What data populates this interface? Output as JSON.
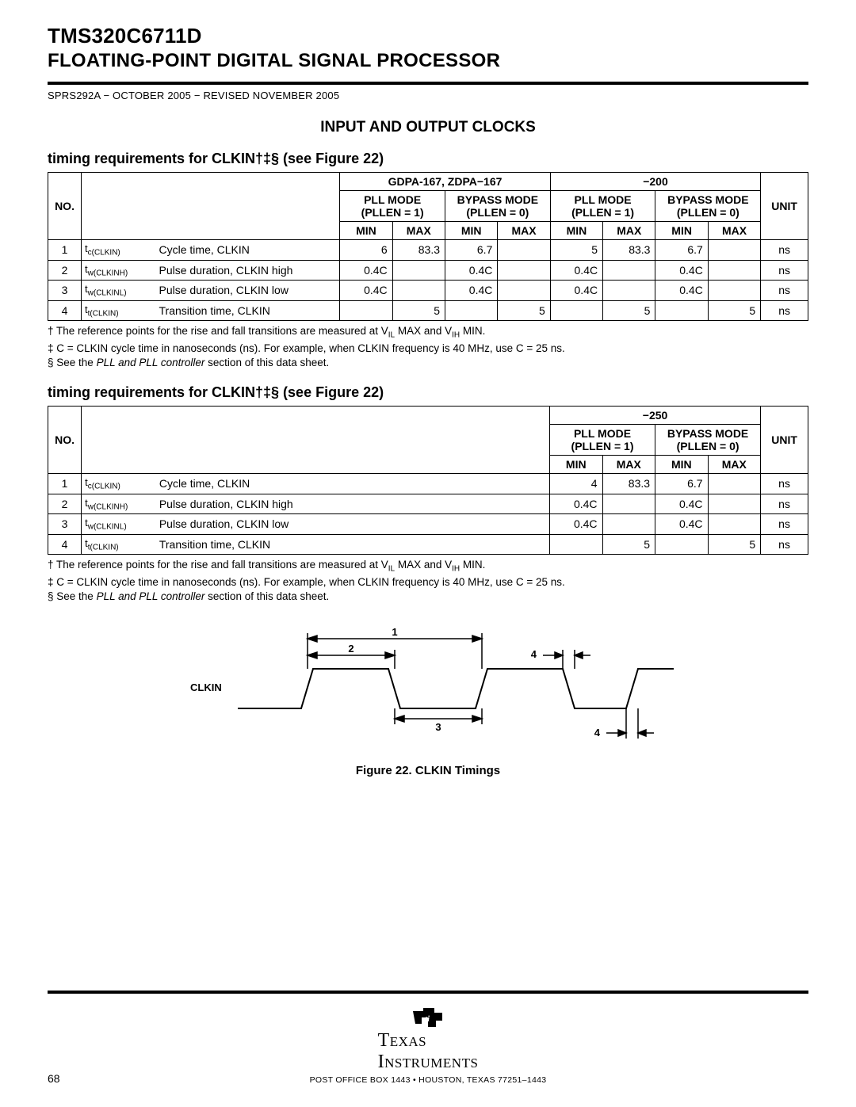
{
  "header": {
    "title": "TMS320C6711D",
    "subtitle": "FLOATING-POINT DIGITAL SIGNAL PROCESSOR",
    "revision": "SPRS292A − OCTOBER 2005 − REVISED NOVEMBER 2005"
  },
  "section_heading": "INPUT AND OUTPUT CLOCKS",
  "subheading": "timing requirements for CLKIN†‡§ (see Figure 22)",
  "table1": {
    "top_groups": [
      "GDPA-167, ZDPA−167",
      "−200"
    ],
    "mode_headers": [
      "PLL MODE (PLLEN = 1)",
      "BYPASS MODE (PLLEN = 0)",
      "PLL MODE (PLLEN = 1)",
      "BYPASS MODE (PLLEN = 0)"
    ],
    "minmax": [
      "MIN",
      "MAX",
      "MIN",
      "MAX",
      "MIN",
      "MAX",
      "MIN",
      "MAX"
    ],
    "no_label": "NO.",
    "unit_label": "UNIT",
    "rows": [
      {
        "no": "1",
        "sym_html": "t<sub>c(CLKIN)</sub>",
        "desc": "Cycle time, CLKIN",
        "vals": [
          "6",
          "83.3",
          "6.7",
          "",
          "5",
          "83.3",
          "6.7",
          ""
        ],
        "unit": "ns"
      },
      {
        "no": "2",
        "sym_html": "t<sub>w(CLKINH)</sub>",
        "desc": "Pulse duration, CLKIN high",
        "vals": [
          "0.4C",
          "",
          "0.4C",
          "",
          "0.4C",
          "",
          "0.4C",
          ""
        ],
        "unit": "ns"
      },
      {
        "no": "3",
        "sym_html": "t<sub>w(CLKINL)</sub>",
        "desc": "Pulse duration, CLKIN low",
        "vals": [
          "0.4C",
          "",
          "0.4C",
          "",
          "0.4C",
          "",
          "0.4C",
          ""
        ],
        "unit": "ns"
      },
      {
        "no": "4",
        "sym_html": "t<sub>t(CLKIN)</sub>",
        "desc": "Transition time, CLKIN",
        "vals": [
          "",
          "5",
          "",
          "5",
          "",
          "5",
          "",
          "5"
        ],
        "unit": "ns"
      }
    ]
  },
  "table2": {
    "top_group": "−250",
    "mode_headers": [
      "PLL MODE (PLLEN = 1)",
      "BYPASS MODE (PLLEN = 0)"
    ],
    "minmax": [
      "MIN",
      "MAX",
      "MIN",
      "MAX"
    ],
    "no_label": "NO.",
    "unit_label": "UNIT",
    "rows": [
      {
        "no": "1",
        "sym_html": "t<sub>c(CLKIN)</sub>",
        "desc": "Cycle time, CLKIN",
        "vals": [
          "4",
          "83.3",
          "6.7",
          ""
        ],
        "unit": "ns"
      },
      {
        "no": "2",
        "sym_html": "t<sub>w(CLKINH)</sub>",
        "desc": "Pulse duration, CLKIN high",
        "vals": [
          "0.4C",
          "",
          "0.4C",
          ""
        ],
        "unit": "ns"
      },
      {
        "no": "3",
        "sym_html": "t<sub>w(CLKINL)</sub>",
        "desc": "Pulse duration, CLKIN low",
        "vals": [
          "0.4C",
          "",
          "0.4C",
          ""
        ],
        "unit": "ns"
      },
      {
        "no": "4",
        "sym_html": "t<sub>t(CLKIN)</sub>",
        "desc": "Transition time, CLKIN",
        "vals": [
          "",
          "5",
          "",
          "5"
        ],
        "unit": "ns"
      }
    ]
  },
  "footnotes": {
    "f1_pre": "† The reference points for the rise and fall transitions are measured at V",
    "f1_sub1": "IL",
    "f1_mid": " MAX and V",
    "f1_sub2": "IH",
    "f1_post": " MIN.",
    "f2": "‡ C = CLKIN cycle time in nanoseconds (ns). For example, when CLKIN frequency is 40 MHz, use C = 25 ns.",
    "f3_pre": "§ See the ",
    "f3_italic": "PLL and PLL controller",
    "f3_post": " section of this data sheet."
  },
  "figure": {
    "clkin_label": "CLKIN",
    "labels": {
      "1": "1",
      "2": "2",
      "3": "3",
      "4a": "4",
      "4b": "4"
    },
    "caption": "Figure 22. CLKIN Timings"
  },
  "footer": {
    "page": "68",
    "brand_top": "Texas",
    "brand_bottom": "Instruments",
    "addr": "POST OFFICE BOX 1443 • HOUSTON, TEXAS 77251–1443"
  }
}
